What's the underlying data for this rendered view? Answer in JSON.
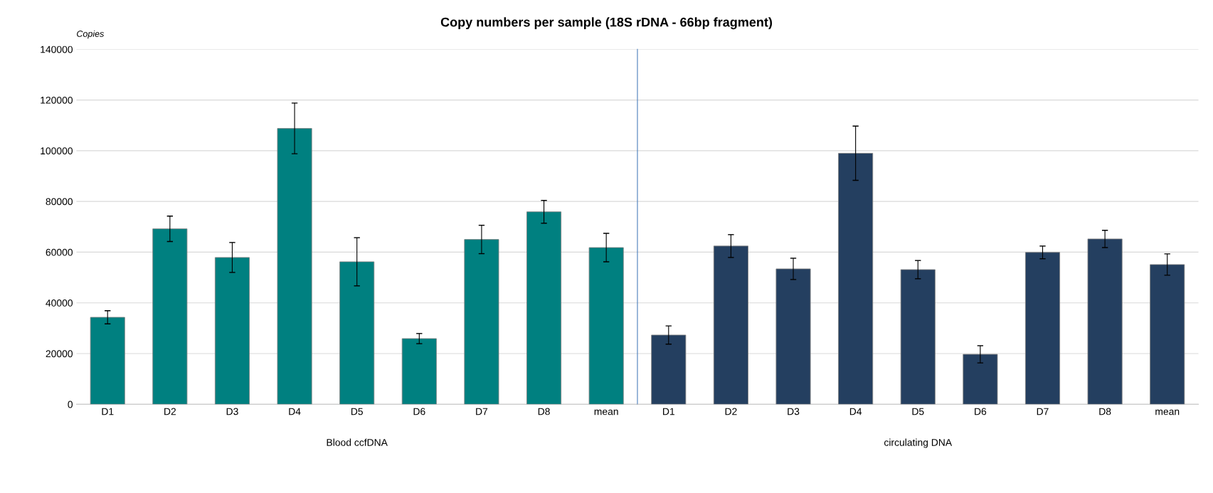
{
  "chart_data": [
    {
      "type": "bar",
      "title": "Copy numbers per sample (18S rDNA - 66bp fragment)",
      "ylabel": "Copies",
      "xlabel": "Blood ccfDNA",
      "categories": [
        "D1",
        "D2",
        "D3",
        "D4",
        "D5",
        "D6",
        "D7",
        "D8",
        "mean"
      ],
      "series": [
        {
          "color": "#008080",
          "values": [
            34300,
            69200,
            57900,
            108800,
            56200,
            25900,
            65000,
            75900,
            61800
          ],
          "errors": [
            2600,
            5000,
            5900,
            10000,
            9500,
            2000,
            5600,
            4500,
            5600
          ]
        }
      ],
      "ylim": [
        0,
        140000
      ],
      "yticks": [
        0,
        20000,
        40000,
        60000,
        80000,
        100000,
        120000,
        140000
      ],
      "grid": "y"
    },
    {
      "type": "bar",
      "xlabel": "circulating DNA",
      "categories": [
        "D1",
        "D2",
        "D3",
        "D4",
        "D5",
        "D6",
        "D7",
        "D8",
        "mean"
      ],
      "series": [
        {
          "color": "#243f60",
          "values": [
            27300,
            62400,
            53400,
            99000,
            53100,
            19700,
            59900,
            65200,
            55100
          ],
          "errors": [
            3600,
            4500,
            4200,
            10700,
            3600,
            3400,
            2500,
            3400,
            4200
          ]
        }
      ],
      "ylim": [
        0,
        140000
      ],
      "yticks": [
        0,
        20000,
        40000,
        60000,
        80000,
        100000,
        120000,
        140000
      ],
      "grid": "y",
      "tick_labels": "x"
    }
  ]
}
